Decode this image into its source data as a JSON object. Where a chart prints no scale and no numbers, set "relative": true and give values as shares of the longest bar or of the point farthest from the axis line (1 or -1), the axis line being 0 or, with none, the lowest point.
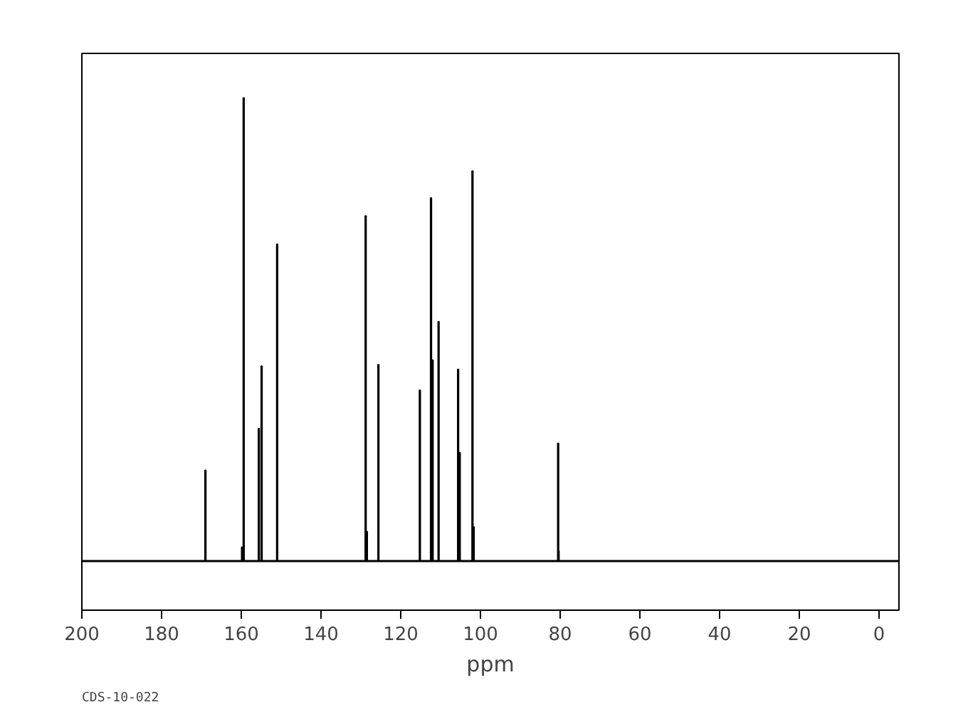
{
  "chart_data": {
    "type": "bar",
    "relative": true,
    "xlabel": "ppm",
    "annotations": [
      "CDS-10-022"
    ],
    "x": [
      169.0,
      159.8,
      159.4,
      155.6,
      154.9,
      151.0,
      128.8,
      128.5,
      125.6,
      115.2,
      112.4,
      112.0,
      110.5,
      105.6,
      105.2,
      102.0,
      101.7,
      80.5,
      80.4
    ],
    "values": [
      0.196,
      0.03,
      1.0,
      0.286,
      0.421,
      0.684,
      0.745,
      0.064,
      0.424,
      0.369,
      0.784,
      0.434,
      0.517,
      0.414,
      0.234,
      0.842,
      0.074,
      0.254,
      0.022
    ],
    "color": "#000000",
    "xlim": [
      200,
      -5
    ],
    "xticks": [
      200,
      180,
      160,
      140,
      120,
      100,
      80,
      60,
      40,
      20,
      0
    ],
    "grid": false
  }
}
